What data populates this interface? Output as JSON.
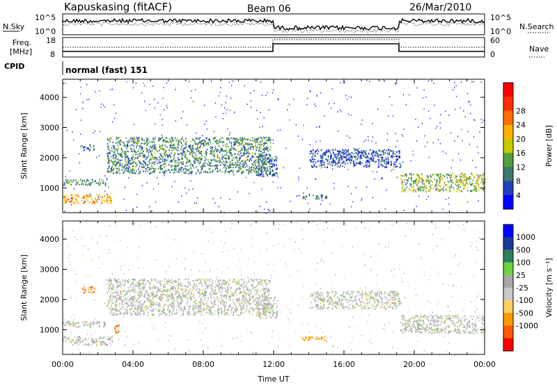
{
  "header": {
    "station": "Kapuskasing (fitACF)",
    "beam": "Beam 06",
    "date": "26/Mar/2010"
  },
  "top_panels": {
    "nsky_label": "N.Sky",
    "nsky_ticks": [
      "10^5",
      "10^0"
    ],
    "nsearch_label": "N.Search",
    "nsearch_ticks": [
      "10^5",
      "10^0"
    ],
    "freq_label": "Freq.",
    "freq_unit": "[MHz]",
    "freq_ticks": [
      "18",
      "8"
    ],
    "nave_label": "Nave",
    "nave_ticks": [
      "60",
      "0"
    ],
    "cpid_label": "CPID",
    "cpid_text": "normal (fast) 151"
  },
  "colors": {
    "power_scale": [
      "#0000ff",
      "#2040c0",
      "#3a7a6a",
      "#52a040",
      "#c8c800",
      "#ffb000",
      "#ff7000",
      "#ff3000",
      "#ff0000"
    ],
    "velocity_scale": [
      "#ff0000",
      "#ff5a00",
      "#ff9a00",
      "#ffd060",
      "#c8c8c8",
      "#a8a8a8",
      "#70d040",
      "#308060",
      "#1a3a9a",
      "#0000ff"
    ]
  },
  "chart_data": [
    {
      "type": "heatmap",
      "title": "Power",
      "xlabel": "Time UT",
      "ylabel": "Slant Range [km]",
      "x_ticks": [
        "00:00",
        "04:00",
        "08:00",
        "12:00",
        "16:00",
        "20:00",
        "00:00"
      ],
      "xlim_hours": [
        0,
        24
      ],
      "y_ticks": [
        1000,
        2000,
        3000,
        4000
      ],
      "ylim": [
        180,
        4600
      ],
      "colorbar": {
        "label": "Power [dB]",
        "ticks": [
          4,
          8,
          12,
          16,
          20,
          24,
          28
        ],
        "range": [
          0,
          32
        ]
      },
      "echo_bands": [
        {
          "t0": 0.0,
          "t1": 2.8,
          "r0": 500,
          "r1": 800,
          "level": 20
        },
        {
          "t0": 0.0,
          "t1": 2.5,
          "r0": 1100,
          "r1": 1300,
          "level": 10
        },
        {
          "t0": 1.0,
          "t1": 1.8,
          "r0": 2250,
          "r1": 2450,
          "level": 8
        },
        {
          "t0": 2.5,
          "t1": 11.8,
          "r0": 1500,
          "r1": 2700,
          "level": 10
        },
        {
          "t0": 11.0,
          "t1": 12.2,
          "r0": 1400,
          "r1": 2100,
          "level": 8
        },
        {
          "t0": 13.6,
          "t1": 15.0,
          "r0": 650,
          "r1": 800,
          "level": 8
        },
        {
          "t0": 14.0,
          "t1": 19.2,
          "r0": 1700,
          "r1": 2300,
          "level": 6
        },
        {
          "t0": 19.2,
          "t1": 24.0,
          "r0": 900,
          "r1": 1500,
          "level": 14
        }
      ]
    },
    {
      "type": "heatmap",
      "title": "Velocity",
      "xlabel": "Time UT",
      "ylabel": "Slant Range [km]",
      "x_ticks": [
        "00:00",
        "04:00",
        "08:00",
        "12:00",
        "16:00",
        "20:00",
        "00:00"
      ],
      "xlim_hours": [
        0,
        24
      ],
      "y_ticks": [
        1000,
        2000,
        3000,
        4000
      ],
      "ylim": [
        180,
        4600
      ],
      "colorbar": {
        "label": "Velocity [m s⁻¹]",
        "ticks": [
          "1000",
          "500",
          "100",
          "25",
          "-25",
          "-100",
          "-500",
          "-1000"
        ]
      },
      "echo_bands": [
        {
          "t0": 0.0,
          "t1": 2.8,
          "r0": 500,
          "r1": 800,
          "level": 0
        },
        {
          "t0": 0.0,
          "t1": 2.5,
          "r0": 1100,
          "r1": 1300,
          "level": 0
        },
        {
          "t0": 1.0,
          "t1": 1.8,
          "r0": 2250,
          "r1": 2450,
          "level": -300
        },
        {
          "t0": 2.5,
          "t1": 11.8,
          "r0": 1500,
          "r1": 2700,
          "level": 0
        },
        {
          "t0": 2.8,
          "t1": 3.2,
          "r0": 900,
          "r1": 1200,
          "level": -300
        },
        {
          "t0": 11.0,
          "t1": 12.2,
          "r0": 1400,
          "r1": 2100,
          "level": 0
        },
        {
          "t0": 13.6,
          "t1": 15.0,
          "r0": 650,
          "r1": 800,
          "level": -100
        },
        {
          "t0": 14.0,
          "t1": 19.2,
          "r0": 1700,
          "r1": 2300,
          "level": 0
        },
        {
          "t0": 19.2,
          "t1": 24.0,
          "r0": 900,
          "r1": 1500,
          "level": 0
        }
      ]
    }
  ]
}
